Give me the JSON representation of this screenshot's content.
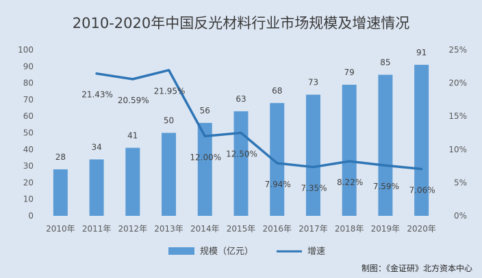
{
  "chart_data": {
    "type": "bar",
    "title": "2010-2020年中国反光材料行业市场规模及增速情况",
    "categories": [
      "2010年",
      "2011年",
      "2012年",
      "2013年",
      "2014年",
      "2015年",
      "2016年",
      "2017年",
      "2018年",
      "2019年",
      "2020年"
    ],
    "series": [
      {
        "name": "规模（亿元）",
        "type": "bar",
        "axis": "left",
        "color": "#5b9bd5",
        "values": [
          28,
          34,
          41,
          50,
          56,
          63,
          68,
          73,
          79,
          85,
          91
        ],
        "labels": [
          "28",
          "34",
          "41",
          "50",
          "56",
          "63",
          "68",
          "73",
          "79",
          "85",
          "91"
        ]
      },
      {
        "name": "增速",
        "type": "line",
        "axis": "right",
        "color": "#2e75b6",
        "values": [
          null,
          21.43,
          20.59,
          21.95,
          12.0,
          12.5,
          7.94,
          7.35,
          8.22,
          7.59,
          7.06
        ],
        "labels": [
          "",
          "21.43%",
          "20.59%",
          "21.95%",
          "12.00%",
          "12.50%",
          "7.94%",
          "7.35%",
          "8.22%",
          "7.59%",
          "7.06%"
        ]
      }
    ],
    "y_left": {
      "min": 0,
      "max": 100,
      "ticks": [
        "0",
        "10",
        "20",
        "30",
        "40",
        "50",
        "60",
        "70",
        "80",
        "90",
        "100"
      ]
    },
    "y_right": {
      "min": 0,
      "max": 25,
      "ticks": [
        "0%",
        "5%",
        "10%",
        "15%",
        "20%",
        "25%"
      ]
    },
    "grid": false,
    "legend_position": "bottom"
  },
  "credit": "制图：《金证研》北方资本中心",
  "colors": {
    "background": "#dce6f2",
    "bar": "#5b9bd5",
    "line": "#2e75b6"
  }
}
